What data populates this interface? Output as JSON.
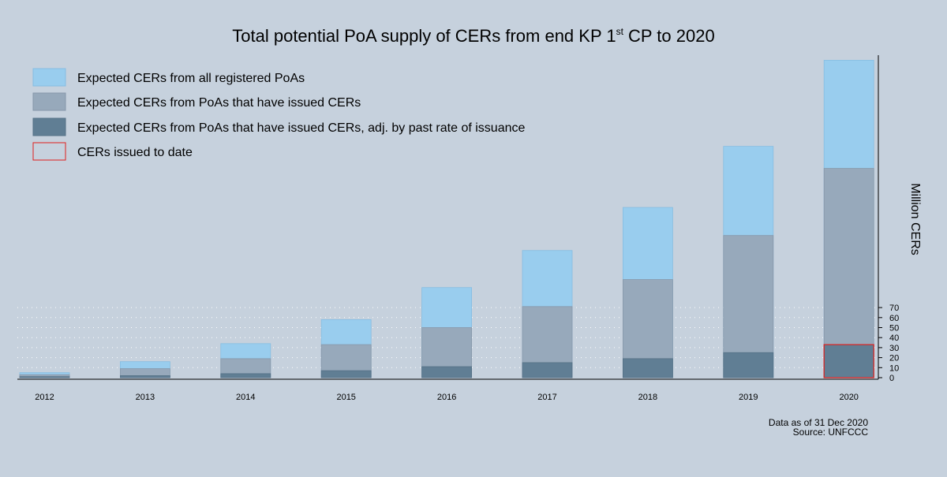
{
  "chart_data": {
    "type": "bar",
    "title": "Total potential PoA supply of CERs from end KP 1",
    "title_sup": "st",
    "title_tail": " CP to 2020",
    "ylabel": "Million CERs",
    "ylim": [
      0,
      320
    ],
    "yticks": [
      0,
      10,
      20,
      30,
      40,
      50,
      60,
      70
    ],
    "grid": "dotted horizontal",
    "legend_position": "top-left",
    "categories": [
      "2012",
      "2013",
      "2014",
      "2015",
      "2016",
      "2017",
      "2018",
      "2019",
      "2020"
    ],
    "series": [
      {
        "name": "Expected CERs from all registered PoAs",
        "color": "#99cdee",
        "values": [
          5,
          16,
          34,
          58,
          90,
          127,
          170,
          231,
          317
        ]
      },
      {
        "name": "Expected CERs from PoAs that have issued CERs",
        "color": "#97a9bb",
        "values": [
          3,
          9,
          19,
          33,
          50,
          71,
          98,
          142,
          209
        ]
      },
      {
        "name": "Expected CERs from PoAs that have issued CERs, adj. by past rate of issuance",
        "color": "#607e94",
        "values": [
          1,
          2,
          4,
          7,
          11,
          15,
          19,
          25,
          33
        ]
      },
      {
        "name": "CERs issued to date",
        "color": "#e0201d",
        "values": [
          null,
          null,
          null,
          null,
          null,
          null,
          null,
          null,
          33
        ]
      }
    ],
    "note_lines": [
      "Data as of 31 Dec 2020",
      "Source: UNFCCC"
    ]
  }
}
